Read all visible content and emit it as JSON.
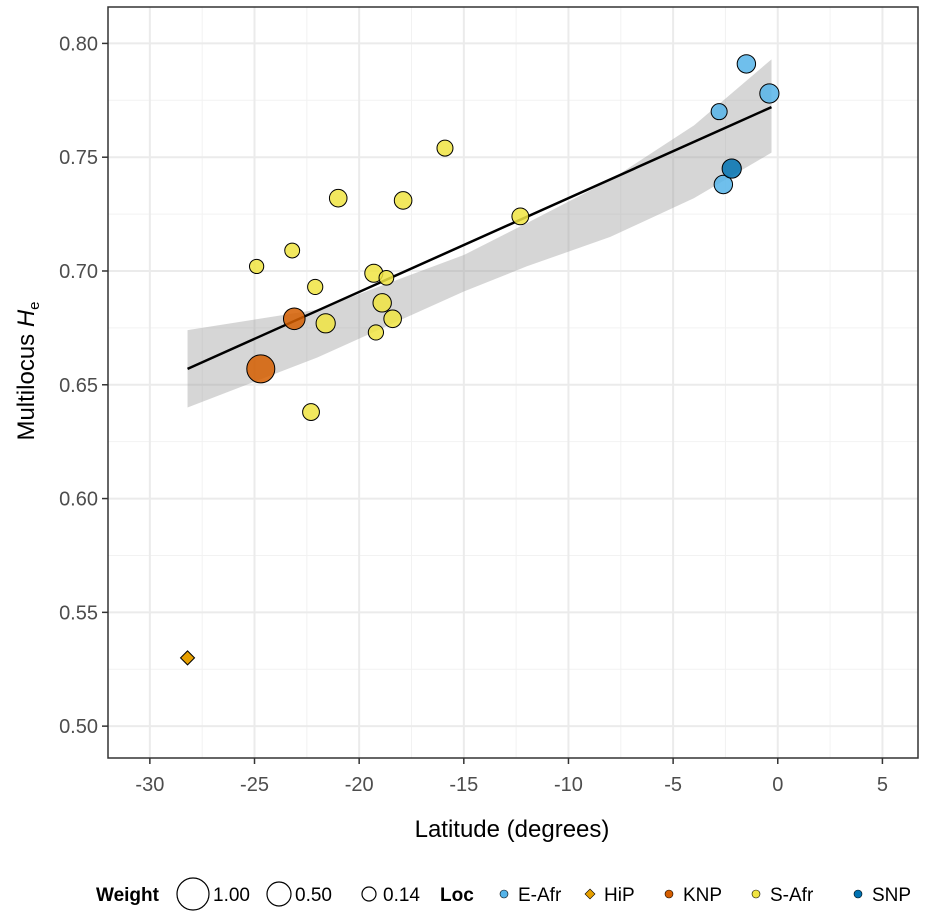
{
  "chart_data": {
    "type": "scatter",
    "xlabel": "Latitude (degrees)",
    "ylabel_main": "Multilocus ",
    "ylabel_italic": "H",
    "ylabel_sub": "e",
    "xlim": [
      -32,
      6.7
    ],
    "ylim": [
      0.486,
      0.816
    ],
    "x_ticks": [
      -30,
      -25,
      -20,
      -15,
      -10,
      -5,
      0,
      5
    ],
    "x_tick_labels": [
      "-30",
      "-25",
      "-20",
      "-15",
      "-10",
      "-5",
      "0",
      "5"
    ],
    "y_ticks": [
      0.5,
      0.55,
      0.6,
      0.65,
      0.7,
      0.75,
      0.8
    ],
    "y_tick_labels": [
      "0.50",
      "0.55",
      "0.60",
      "0.65",
      "0.70",
      "0.75",
      "0.80"
    ],
    "grid": true,
    "regression": {
      "x_start": -28.2,
      "y_start": 0.657,
      "x_end": -0.3,
      "y_end": 0.772,
      "ribbon_x": [
        -28.2,
        -22,
        -15,
        -12,
        -8,
        -4,
        -0.3
      ],
      "ribbon_upper": [
        0.674,
        0.683,
        0.707,
        0.721,
        0.74,
        0.764,
        0.793
      ],
      "ribbon_lower": [
        0.64,
        0.662,
        0.691,
        0.702,
        0.715,
        0.732,
        0.752
      ]
    },
    "colors": {
      "E-Afr": "#56B4E9",
      "HiP": "#E69F00",
      "KNP": "#D55E00",
      "S-Afr": "#F0E442",
      "SNP": "#0072B2"
    },
    "points": [
      {
        "x": -28.2,
        "y": 0.53,
        "loc": "HiP",
        "weight": 0.14,
        "shape": "diamond"
      },
      {
        "x": -24.7,
        "y": 0.657,
        "loc": "KNP",
        "weight": 1.0
      },
      {
        "x": -23.1,
        "y": 0.679,
        "loc": "KNP",
        "weight": 0.6
      },
      {
        "x": -24.9,
        "y": 0.702,
        "loc": "S-Afr",
        "weight": 0.14
      },
      {
        "x": -23.2,
        "y": 0.709,
        "loc": "S-Afr",
        "weight": 0.18
      },
      {
        "x": -22.3,
        "y": 0.638,
        "loc": "S-Afr",
        "weight": 0.3
      },
      {
        "x": -22.1,
        "y": 0.693,
        "loc": "S-Afr",
        "weight": 0.2
      },
      {
        "x": -21.6,
        "y": 0.677,
        "loc": "S-Afr",
        "weight": 0.45
      },
      {
        "x": -21.0,
        "y": 0.732,
        "loc": "S-Afr",
        "weight": 0.35
      },
      {
        "x": -19.3,
        "y": 0.699,
        "loc": "S-Afr",
        "weight": 0.38
      },
      {
        "x": -19.2,
        "y": 0.673,
        "loc": "S-Afr",
        "weight": 0.2
      },
      {
        "x": -18.9,
        "y": 0.686,
        "loc": "S-Afr",
        "weight": 0.4
      },
      {
        "x": -18.7,
        "y": 0.697,
        "loc": "S-Afr",
        "weight": 0.17
      },
      {
        "x": -18.4,
        "y": 0.679,
        "loc": "S-Afr",
        "weight": 0.35
      },
      {
        "x": -17.9,
        "y": 0.731,
        "loc": "S-Afr",
        "weight": 0.35
      },
      {
        "x": -15.9,
        "y": 0.754,
        "loc": "S-Afr",
        "weight": 0.25
      },
      {
        "x": -12.3,
        "y": 0.724,
        "loc": "S-Afr",
        "weight": 0.3
      },
      {
        "x": -2.8,
        "y": 0.77,
        "loc": "E-Afr",
        "weight": 0.25
      },
      {
        "x": -2.6,
        "y": 0.738,
        "loc": "E-Afr",
        "weight": 0.4
      },
      {
        "x": -1.5,
        "y": 0.791,
        "loc": "E-Afr",
        "weight": 0.4
      },
      {
        "x": -0.4,
        "y": 0.778,
        "loc": "E-Afr",
        "weight": 0.45
      },
      {
        "x": -2.2,
        "y": 0.745,
        "loc": "SNP",
        "weight": 0.45
      }
    ],
    "legend": {
      "position": "bottom",
      "weight_title": "Weight",
      "weight_items": [
        {
          "label": "1.00",
          "value": 1.0
        },
        {
          "label": "0.50",
          "value": 0.5
        },
        {
          "label": "0.14",
          "value": 0.14
        }
      ],
      "loc_title": "Loc",
      "loc_items": [
        "E-Afr",
        "HiP",
        "KNP",
        "S-Afr",
        "SNP"
      ]
    }
  }
}
